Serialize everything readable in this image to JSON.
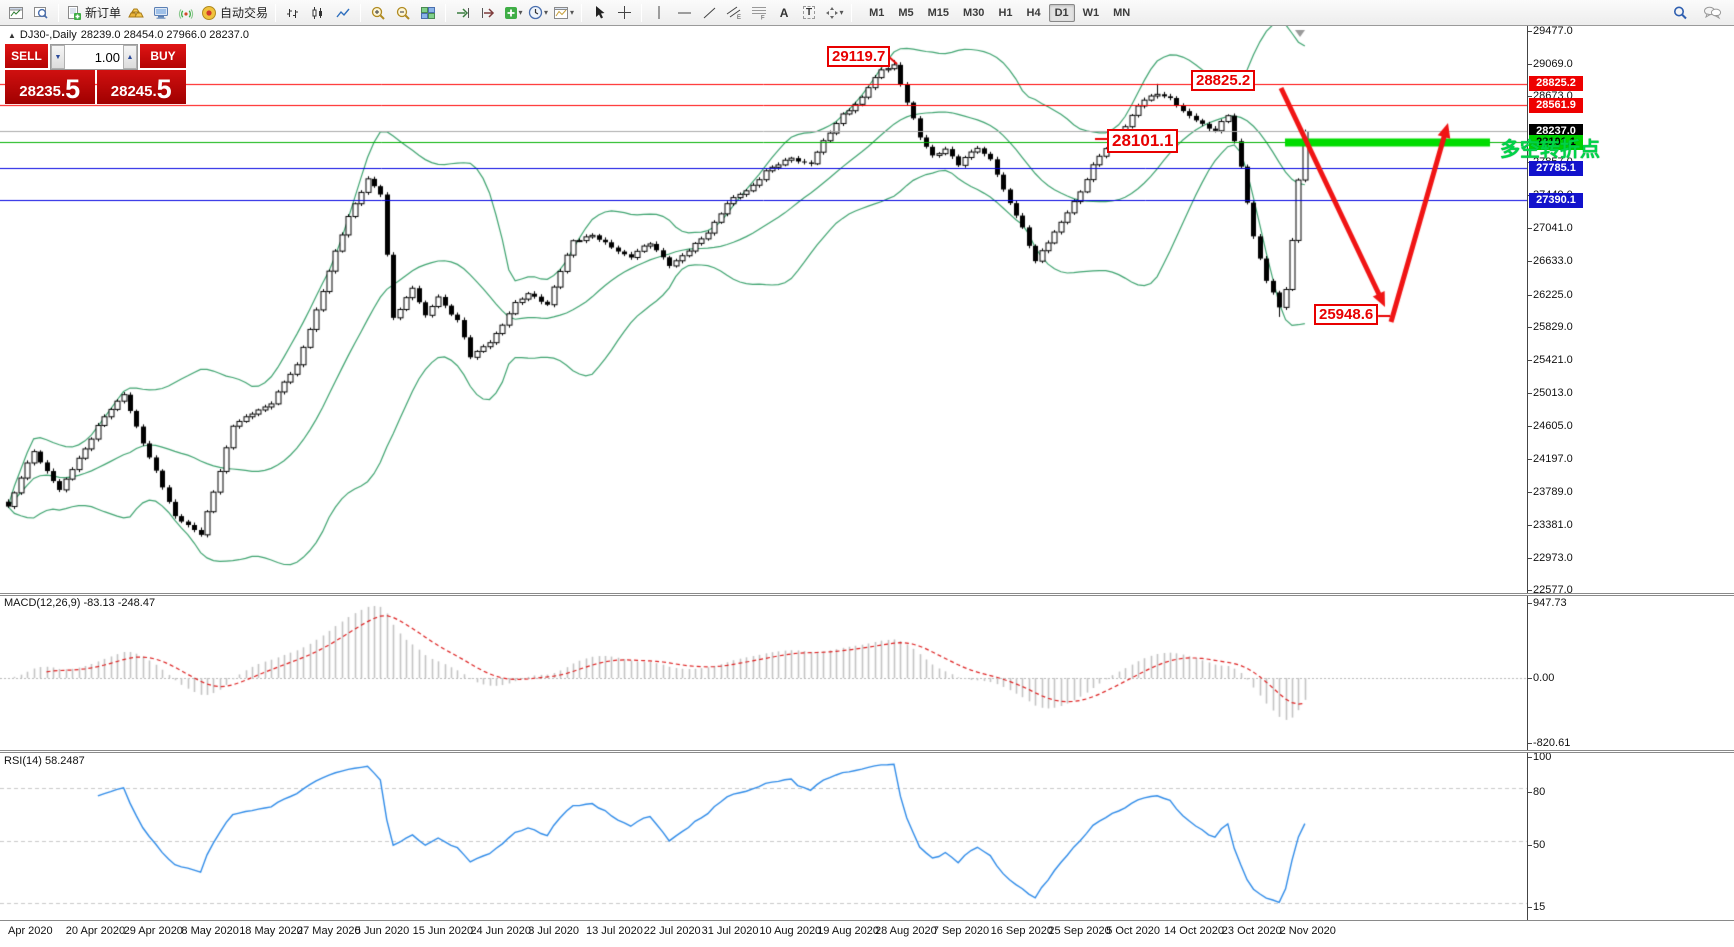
{
  "toolbar": {
    "new_order_label": "新订单",
    "autotrade_label": "自动交易",
    "timeframes": [
      "M1",
      "M5",
      "M15",
      "M30",
      "H1",
      "H4",
      "D1",
      "W1",
      "MN"
    ],
    "active_timeframe": "D1"
  },
  "trade_panel": {
    "sell_label": "SELL",
    "buy_label": "BUY",
    "volume": "1.00",
    "sell_price": "28235.",
    "sell_pip": "5",
    "buy_price": "28245.",
    "buy_pip": "5"
  },
  "chart": {
    "title": "DJ30-,Daily",
    "ohlc": "28239.0 28454.0 27966.0 28237.0"
  },
  "annotations": {
    "peak_label": "29119.7",
    "oct_high_label": "28825.2",
    "pivot_label": "28101.1",
    "oct_low_label": "25948.6",
    "note": "多空转折点"
  },
  "price_axis": {
    "ticks": [
      29477.0,
      29069.0,
      28673.0,
      27857.0,
      27449.0,
      27041.0,
      26633.0,
      26225.0,
      25829.0,
      25421.0,
      25013.0,
      24605.0,
      24197.0,
      23789.0,
      23381.0,
      22973.0,
      22577.0
    ],
    "badges": [
      {
        "label": "28825.2",
        "price": 28825.2,
        "bg": "#ee0000",
        "fg": "#ffffff"
      },
      {
        "label": "28561.9",
        "price": 28561.9,
        "bg": "#ee0000",
        "fg": "#ffffff"
      },
      {
        "label": "28237.0",
        "price": 28237.0,
        "bg": "#000000",
        "fg": "#ffffff"
      },
      {
        "label": "28101.1",
        "price": 28101.1,
        "bg": "#00d200",
        "fg": "#000000"
      },
      {
        "label": "27785.1",
        "price": 27785.1,
        "bg": "#1212cc",
        "fg": "#ffffff"
      },
      {
        "label": "27390.1",
        "price": 27390.1,
        "bg": "#1212cc",
        "fg": "#ffffff"
      }
    ]
  },
  "hlines": [
    {
      "price": 28825.2,
      "color": "#ff0000"
    },
    {
      "price": 28561.9,
      "color": "#ff0000"
    },
    {
      "price": 28237.0,
      "color": "#aaaaaa"
    },
    {
      "price": 28101.1,
      "color": "#00b000"
    },
    {
      "price": 27785.1,
      "color": "#0000e0"
    },
    {
      "price": 27390.1,
      "color": "#0000e0"
    }
  ],
  "macd": {
    "label": "MACD(12,26,9)",
    "main_value": "-83.13",
    "signal_value": "-248.47",
    "axis_max": "947.73",
    "axis_zero": "0.00",
    "axis_min": "-820.61"
  },
  "rsi": {
    "label": "RSI(14)",
    "value": "58.2487",
    "levels": [
      100,
      80,
      50,
      15
    ]
  },
  "date_axis": [
    "Apr 2020",
    "20 Apr 2020",
    "29 Apr 2020",
    "8 May 2020",
    "18 May 2020",
    "27 May 2020",
    "5 Jun 2020",
    "15 Jun 2020",
    "24 Jun 2020",
    "3 Jul 2020",
    "13 Jul 2020",
    "22 Jul 2020",
    "31 Jul 2020",
    "10 Aug 2020",
    "19 Aug 2020",
    "28 Aug 2020",
    "7 Sep 2020",
    "16 Sep 2020",
    "25 Sep 2020",
    "5 Oct 2020",
    "14 Oct 2020",
    "23 Oct 2020",
    "2 Nov 2020"
  ],
  "chart_data": {
    "type": "candlestick",
    "symbol": "DJ30-",
    "period": "Daily",
    "last_open": 28239.0,
    "last_high": 28454.0,
    "last_low": 27966.0,
    "last_close": 28237.0,
    "y_range": [
      22577.0,
      29477.0
    ],
    "indicators": [
      "Bollinger Bands (green)",
      "MACD(12,26,9)",
      "RSI(14)"
    ],
    "bollinger": {
      "period": 20,
      "deviation": 2
    },
    "key_points": {
      "sep_peak_high": 29119.7,
      "oct_high": 28825.2,
      "pivot_level": 28101.1,
      "oct_low": 25948.6
    },
    "price_path_anchors": [
      [
        0,
        23600
      ],
      [
        4,
        24300
      ],
      [
        8,
        23800
      ],
      [
        14,
        24600
      ],
      [
        18,
        25000
      ],
      [
        22,
        24200
      ],
      [
        26,
        23500
      ],
      [
        30,
        23250
      ],
      [
        32,
        23800
      ],
      [
        35,
        24600
      ],
      [
        41,
        24900
      ],
      [
        45,
        25350
      ],
      [
        50,
        26500
      ],
      [
        53,
        27200
      ],
      [
        56,
        27650
      ],
      [
        58,
        27450
      ],
      [
        60,
        25950
      ],
      [
        63,
        26300
      ],
      [
        65,
        25950
      ],
      [
        67,
        26200
      ],
      [
        70,
        25900
      ],
      [
        72,
        25450
      ],
      [
        75,
        25650
      ],
      [
        77,
        25850
      ],
      [
        79,
        26100
      ],
      [
        81,
        26250
      ],
      [
        84,
        26100
      ],
      [
        88,
        26900
      ],
      [
        91,
        26950
      ],
      [
        94,
        26800
      ],
      [
        97,
        26700
      ],
      [
        100,
        26850
      ],
      [
        103,
        26600
      ],
      [
        106,
        26750
      ],
      [
        109,
        27000
      ],
      [
        112,
        27350
      ],
      [
        115,
        27500
      ],
      [
        118,
        27750
      ],
      [
        122,
        27900
      ],
      [
        125,
        27850
      ],
      [
        127,
        28100
      ],
      [
        130,
        28450
      ],
      [
        133,
        28650
      ],
      [
        136,
        29000
      ],
      [
        138,
        29060
      ],
      [
        140,
        28600
      ],
      [
        142,
        28150
      ],
      [
        144,
        27950
      ],
      [
        146,
        28020
      ],
      [
        148,
        27820
      ],
      [
        151,
        28050
      ],
      [
        153,
        27900
      ],
      [
        155,
        27500
      ],
      [
        158,
        27050
      ],
      [
        160,
        26650
      ],
      [
        162,
        26850
      ],
      [
        165,
        27250
      ],
      [
        167,
        27500
      ],
      [
        169,
        27800
      ],
      [
        172,
        28150
      ],
      [
        174,
        28300
      ],
      [
        176,
        28550
      ],
      [
        179,
        28720
      ],
      [
        181,
        28650
      ],
      [
        183,
        28470
      ],
      [
        186,
        28330
      ],
      [
        188,
        28260
      ],
      [
        190,
        28420
      ],
      [
        192,
        27800
      ],
      [
        194,
        26950
      ],
      [
        196,
        26400
      ],
      [
        198,
        26050
      ],
      [
        199,
        26300
      ],
      [
        200,
        26900
      ],
      [
        201,
        27650
      ],
      [
        202,
        28237
      ]
    ]
  }
}
